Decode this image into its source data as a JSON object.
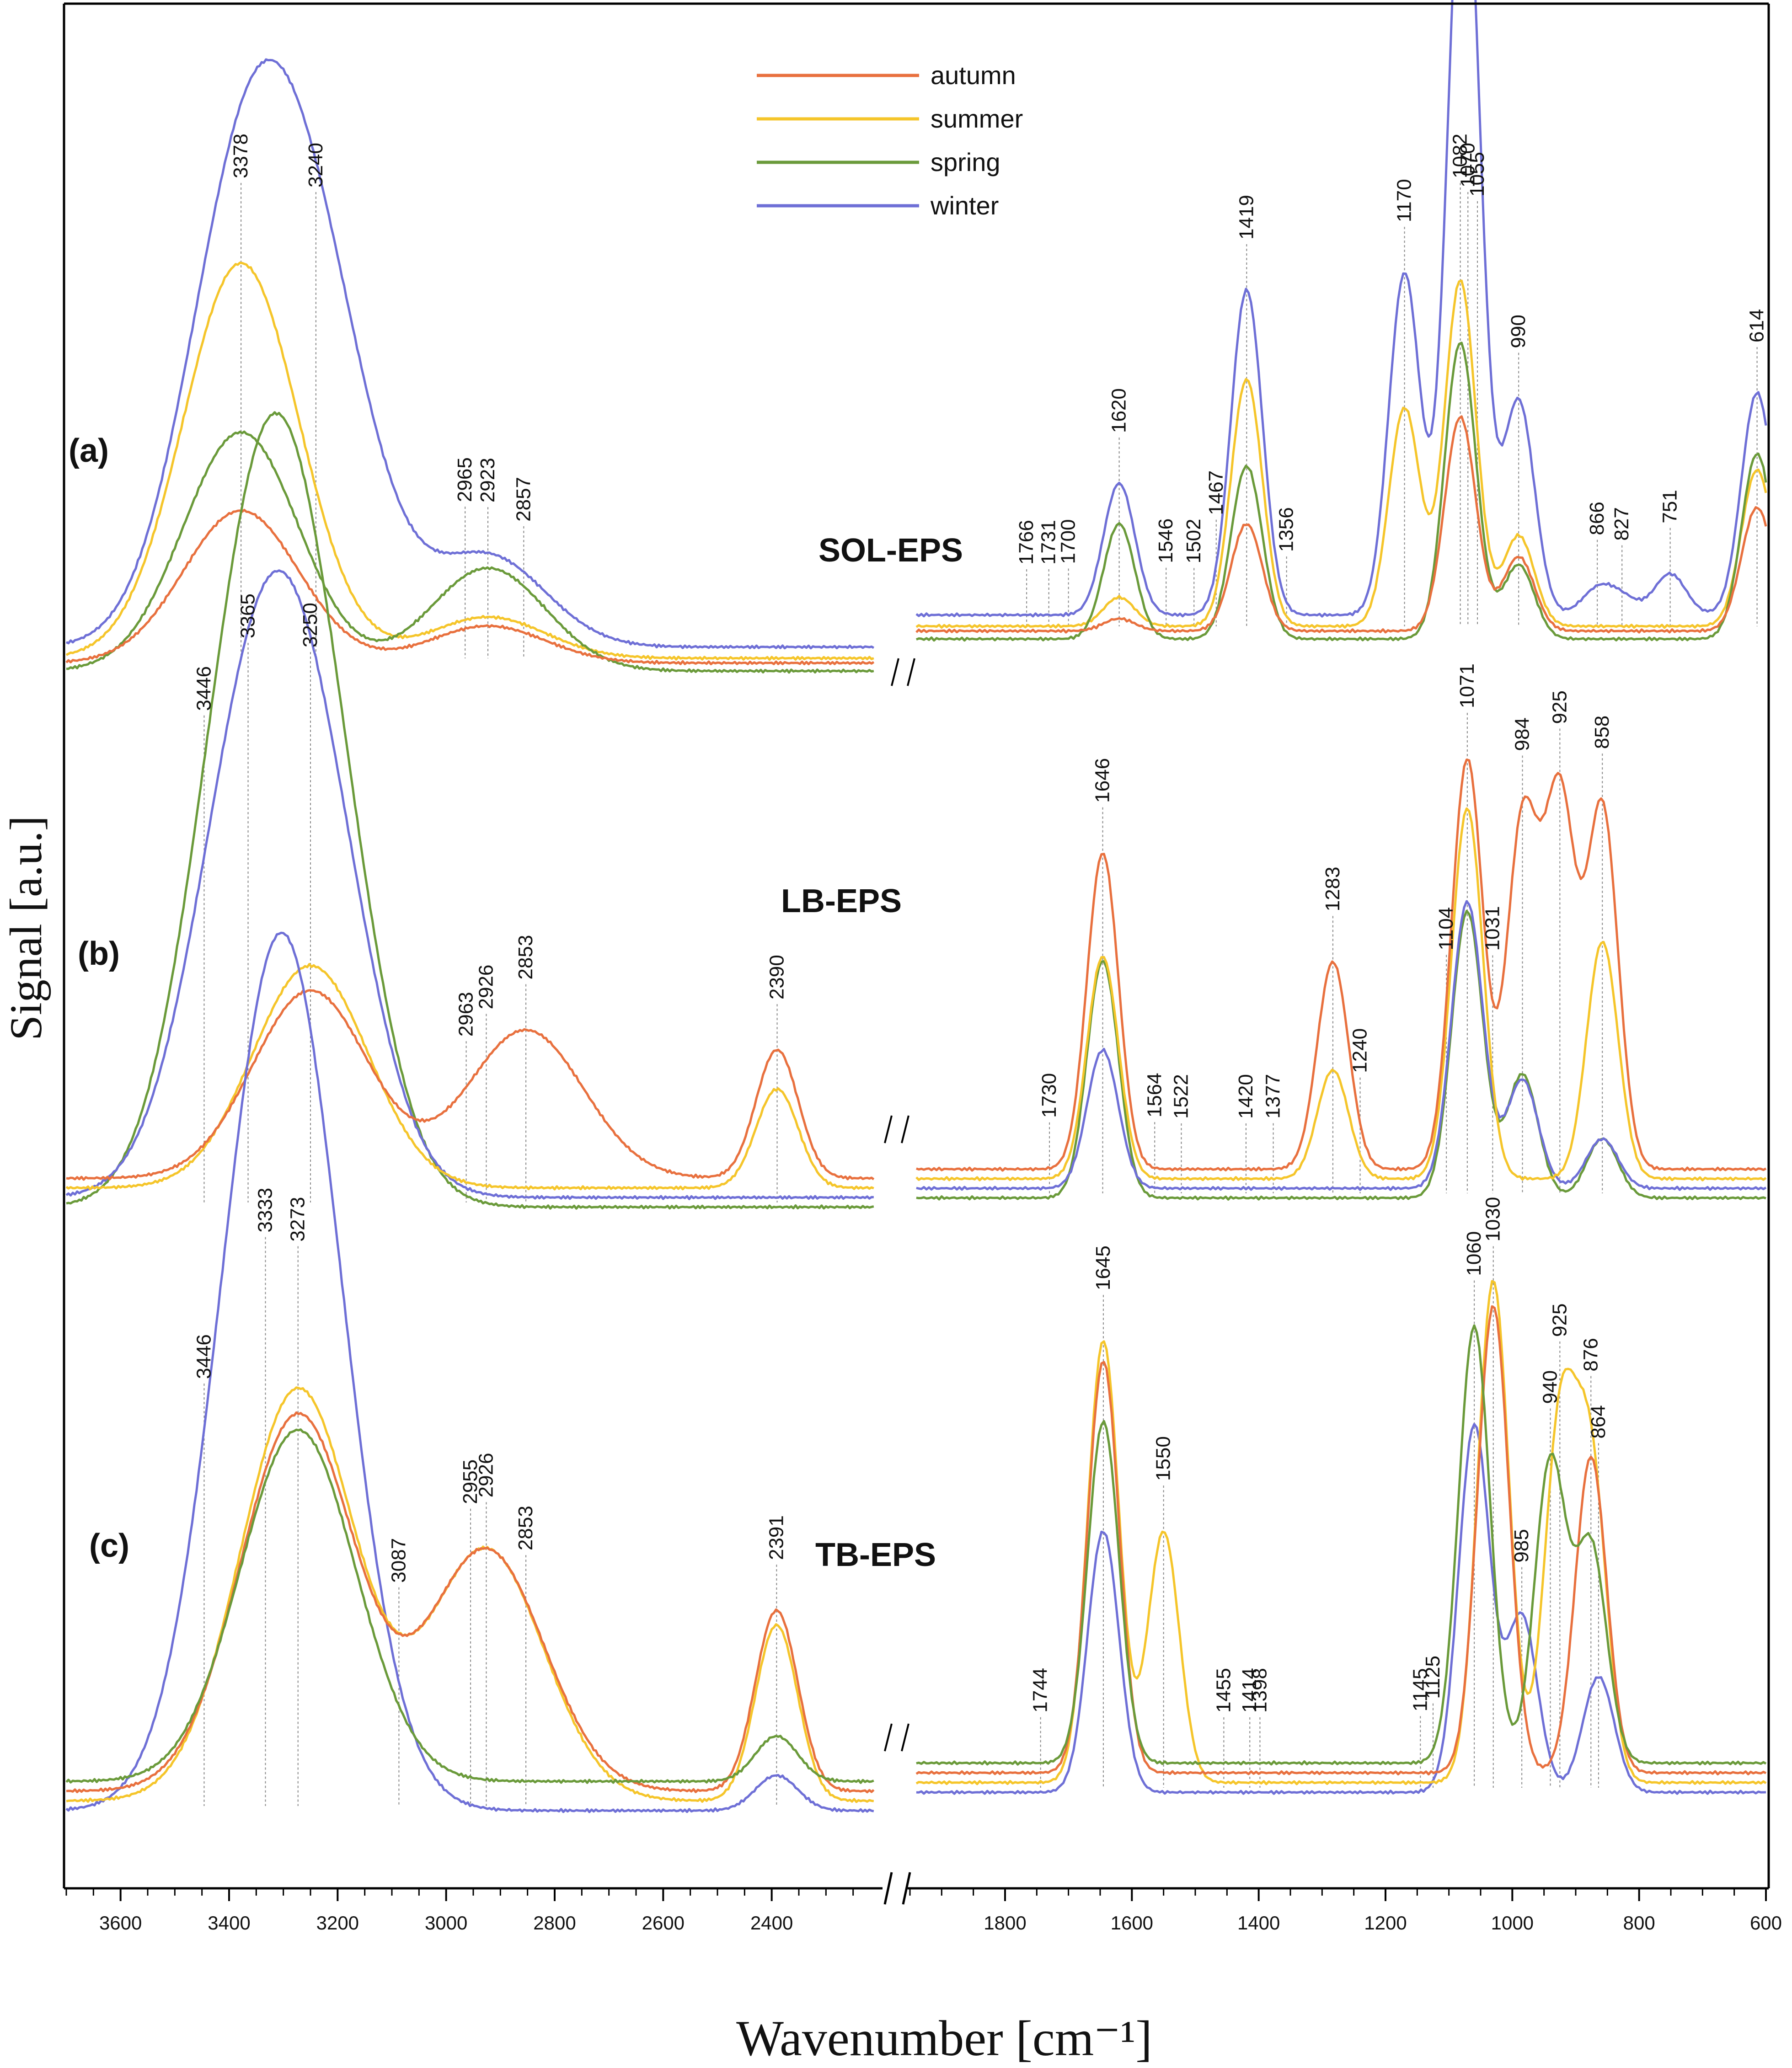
{
  "chart_data": {
    "type": "line",
    "xlabel": "Wavenumber [cm⁻¹]",
    "ylabel": "Signal [a.u.]",
    "x_axis": {
      "range": [
        3700,
        600
      ],
      "break": [
        2200,
        1950
      ],
      "ticks": [
        3600,
        3400,
        3200,
        3000,
        2800,
        2600,
        2400,
        1800,
        1600,
        1400,
        1200,
        1000,
        800,
        600
      ]
    },
    "y_axis": {
      "ticks": "none",
      "units": "arbitrary"
    },
    "legend": {
      "placement": "top-center",
      "entries": [
        {
          "name": "autumn",
          "color": "#e8703e"
        },
        {
          "name": "summer",
          "color": "#f5c52a"
        },
        {
          "name": "spring",
          "color": "#6a9a3a"
        },
        {
          "name": "winter",
          "color": "#6e6fd6"
        }
      ]
    },
    "panels": [
      {
        "label": "(a)",
        "title": "SOL-EPS",
        "series": [
          {
            "name": "winter",
            "peaks": [
              [
                3378,
                100
              ],
              [
                3240,
                75
              ],
              [
                2923,
                22
              ],
              [
                1620,
                32
              ],
              [
                1419,
                79
              ],
              [
                1170,
                83
              ],
              [
                1082,
                105
              ],
              [
                1070,
                93
              ],
              [
                990,
                52
              ],
              [
                866,
                6
              ],
              [
                827,
                4
              ],
              [
                751,
                10
              ],
              [
                614,
                54
              ]
            ]
          },
          {
            "name": "summer",
            "peaks": [
              [
                3378,
                96
              ],
              [
                2923,
                10
              ],
              [
                1620,
                7
              ],
              [
                1419,
                60
              ],
              [
                1170,
                53
              ],
              [
                1082,
                84
              ],
              [
                990,
                22
              ],
              [
                614,
                38
              ]
            ]
          },
          {
            "name": "spring",
            "peaks": [
              [
                3378,
                58
              ],
              [
                2923,
                25
              ],
              [
                1620,
                28
              ],
              [
                1419,
                42
              ],
              [
                1082,
                72
              ],
              [
                990,
                18
              ],
              [
                614,
                45
              ]
            ]
          },
          {
            "name": "autumn",
            "peaks": [
              [
                3378,
                37
              ],
              [
                2923,
                9
              ],
              [
                1620,
                3
              ],
              [
                1419,
                26
              ],
              [
                1082,
                52
              ],
              [
                990,
                18
              ],
              [
                614,
                30
              ]
            ]
          }
        ],
        "peak_labels": [
          "3378",
          "3240",
          "2965",
          "2923",
          "2857",
          "1766",
          "1731",
          "1700",
          "1620",
          "1546",
          "1502",
          "1467",
          "1419",
          "1356",
          "1170",
          "1082",
          "1070",
          "1055",
          "990",
          "866",
          "827",
          "751",
          "614"
        ]
      },
      {
        "label": "(b)",
        "title": "LB-EPS",
        "series": [
          {
            "name": "spring",
            "peaks": [
              [
                3365,
                100
              ],
              [
                3250,
                86
              ],
              [
                1646,
                48
              ],
              [
                1071,
                58
              ],
              [
                984,
                25
              ],
              [
                858,
                12
              ]
            ]
          },
          {
            "name": "winter",
            "peaks": [
              [
                3365,
                75
              ],
              [
                3250,
                72
              ],
              [
                1646,
                28
              ],
              [
                1071,
                58
              ],
              [
                984,
                22
              ],
              [
                858,
                10
              ]
            ]
          },
          {
            "name": "summer",
            "peaks": [
              [
                3250,
                45
              ],
              [
                2390,
                20
              ],
              [
                1646,
                45
              ],
              [
                1283,
                22
              ],
              [
                1071,
                75
              ],
              [
                858,
                48
              ]
            ]
          },
          {
            "name": "autumn",
            "peaks": [
              [
                3250,
                38
              ],
              [
                2853,
                30
              ],
              [
                2390,
                26
              ],
              [
                1646,
                64
              ],
              [
                1283,
                42
              ],
              [
                1071,
                83
              ],
              [
                984,
                70
              ],
              [
                925,
                74
              ],
              [
                858,
                73
              ]
            ]
          }
        ],
        "peak_labels": [
          "3446",
          "3365",
          "3250",
          "2963",
          "2926",
          "2853",
          "2390",
          "1730",
          "1646",
          "1564",
          "1522",
          "1420",
          "1377",
          "1283",
          "1240",
          "1104",
          "1071",
          "1031",
          "984",
          "925",
          "858"
        ]
      },
      {
        "label": "(c)",
        "title": "TB-EPS",
        "series": [
          {
            "name": "winter",
            "peaks": [
              [
                3333,
                92
              ],
              [
                3273,
                90
              ],
              [
                2391,
                7
              ],
              [
                1645,
                52
              ],
              [
                1060,
                73
              ],
              [
                985,
                35
              ],
              [
                864,
                23
              ]
            ]
          },
          {
            "name": "summer",
            "peaks": [
              [
                3273,
                82
              ],
              [
                2926,
                50
              ],
              [
                2391,
                35
              ],
              [
                1645,
                88
              ],
              [
                1550,
                50
              ],
              [
                1030,
                100
              ],
              [
                925,
                70
              ],
              [
                876,
                62
              ]
            ]
          },
          {
            "name": "autumn",
            "peaks": [
              [
                3273,
                75
              ],
              [
                2926,
                48
              ],
              [
                2391,
                36
              ],
              [
                1645,
                82
              ],
              [
                1030,
                93
              ],
              [
                876,
                63
              ]
            ]
          },
          {
            "name": "spring",
            "peaks": [
              [
                3273,
                70
              ],
              [
                2391,
                9
              ],
              [
                1645,
                68
              ],
              [
                1060,
                87
              ],
              [
                940,
                60
              ],
              [
                876,
                43
              ]
            ]
          }
        ],
        "peak_labels": [
          "3446",
          "3333",
          "3273",
          "3087",
          "2955",
          "2926",
          "2853",
          "2391",
          "1744",
          "1645",
          "1550",
          "1455",
          "1414",
          "1398",
          "1145",
          "1125",
          "1060",
          "1030",
          "985",
          "925",
          "940",
          "876",
          "864"
        ]
      }
    ]
  }
}
